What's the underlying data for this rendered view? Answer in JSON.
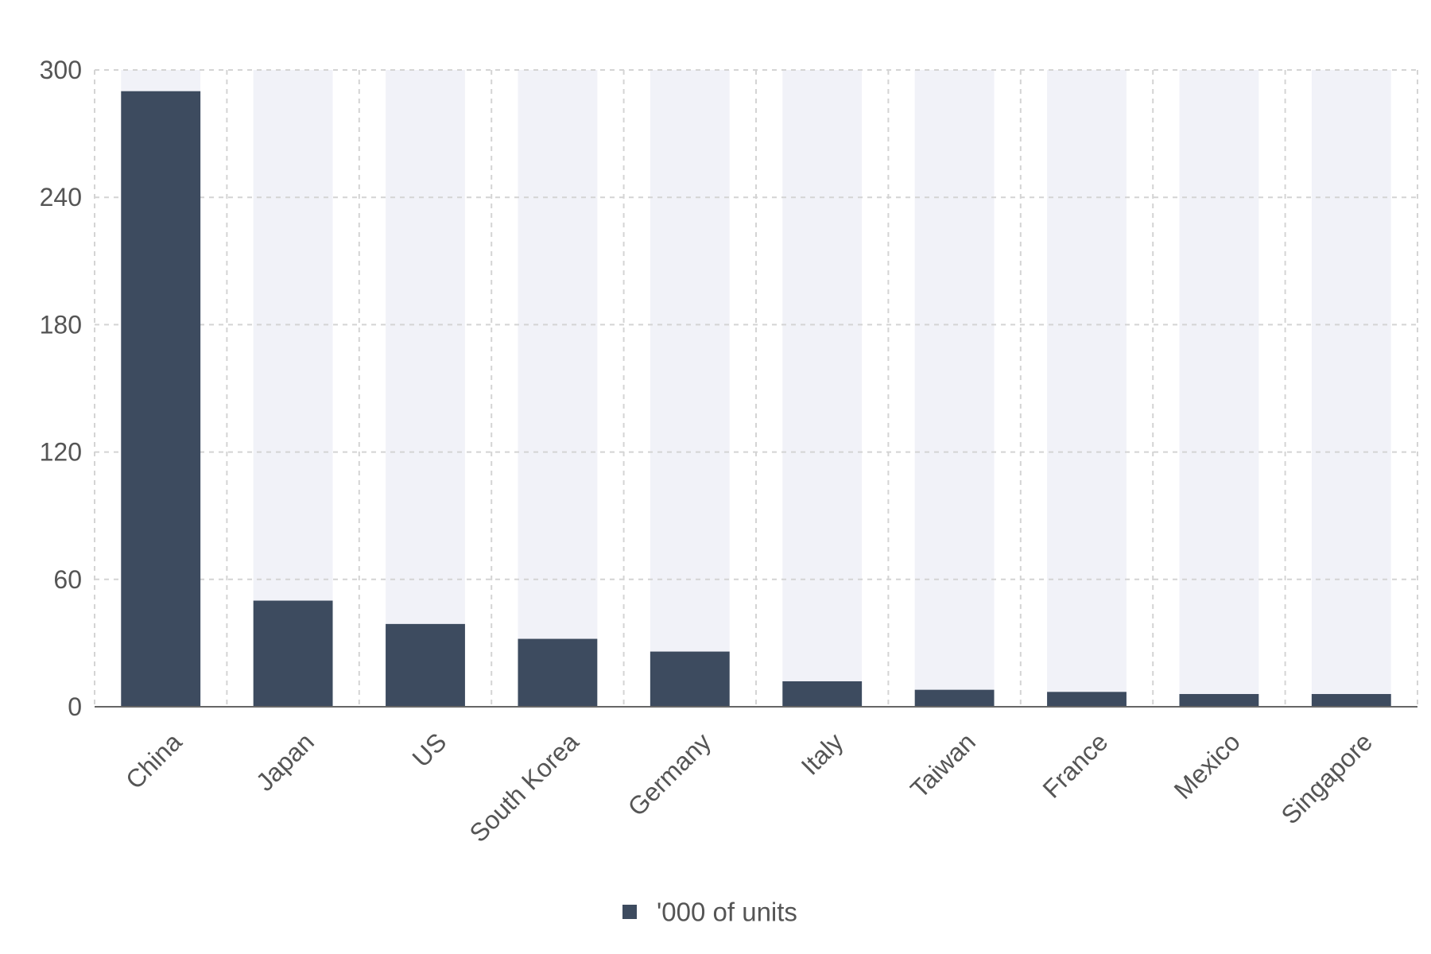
{
  "chart_data": {
    "type": "bar",
    "title": "",
    "xlabel": "",
    "ylabel": "",
    "categories": [
      "China",
      "Japan",
      "US",
      "South Korea",
      "Germany",
      "Italy",
      "Taiwan",
      "France",
      "Mexico",
      "Singapore"
    ],
    "series": [
      {
        "name": "'000 of units",
        "values": [
          290,
          50,
          39,
          32,
          26,
          12,
          8,
          7,
          6,
          6
        ]
      }
    ],
    "ylim": [
      0,
      300
    ],
    "yticks": [
      0,
      60,
      120,
      180,
      240,
      300
    ],
    "ytick_labels": [
      "0",
      "60",
      "120",
      "180",
      "240",
      "300"
    ],
    "grid": true,
    "grid_style": "dashed",
    "background_bars": true,
    "legend_position": "bottom-center",
    "xtick_rotation": "-45",
    "colors": {
      "bar": "#3d4b5f",
      "background_bar": "#f1f2f8",
      "grid": "#d4d4d4",
      "axis": "#666666",
      "text": "#555555"
    }
  }
}
